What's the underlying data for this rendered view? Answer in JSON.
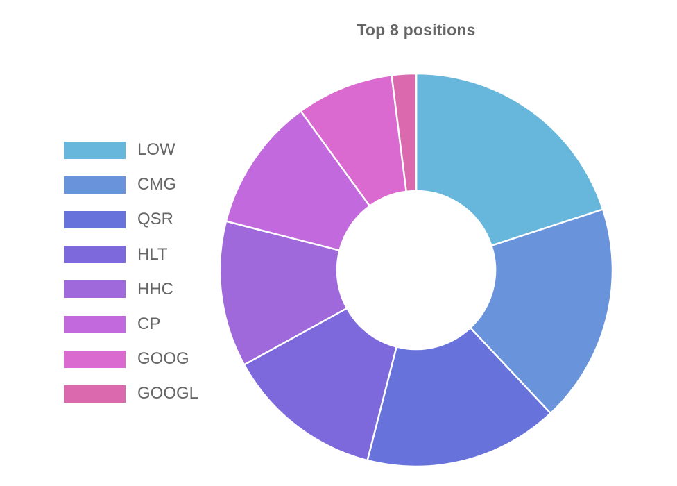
{
  "chart_data": {
    "type": "pie",
    "variant": "doughnut",
    "title": "Top 8 positions",
    "legend_position": "left",
    "categories": [
      "LOW",
      "CMG",
      "QSR",
      "HLT",
      "HHC",
      "CP",
      "GOOG",
      "GOOGL"
    ],
    "values": [
      20.0,
      18.0,
      16.0,
      13.0,
      12.0,
      11.0,
      8.0,
      2.0
    ],
    "colors": [
      "#67B6DB",
      "#6994DB",
      "#6872DB",
      "#7D69DB",
      "#A069DB",
      "#C369DE",
      "#DA69D0",
      "#DB69AD"
    ]
  }
}
